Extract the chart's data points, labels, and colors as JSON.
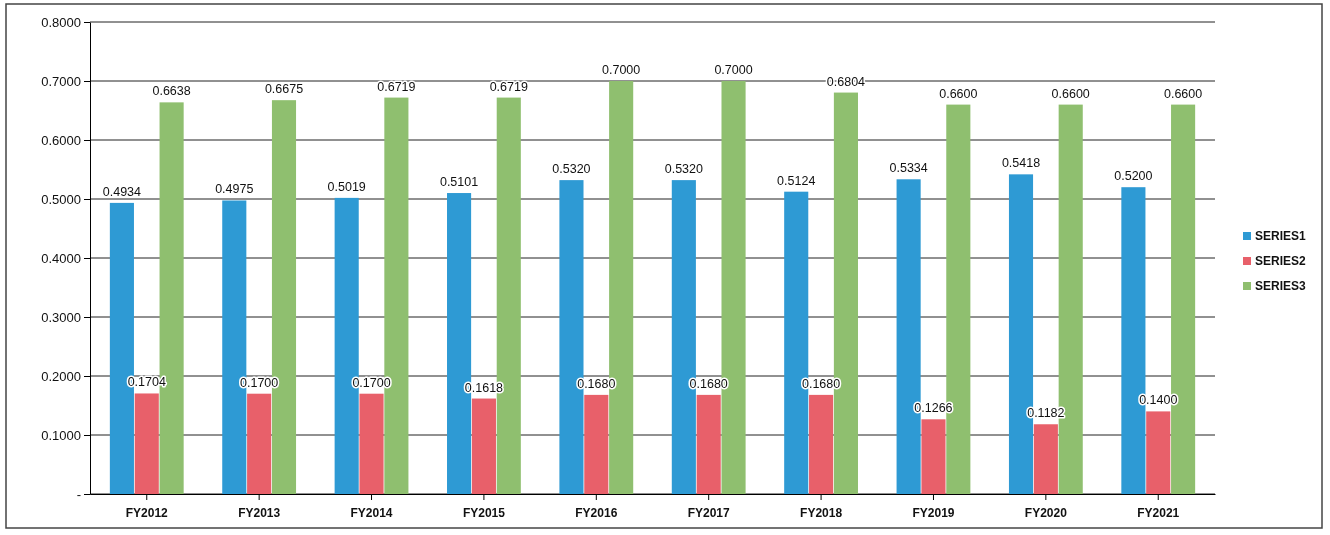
{
  "chart_data": {
    "type": "bar",
    "categories": [
      "FY2012",
      "FY2013",
      "FY2014",
      "FY2015",
      "FY2016",
      "FY2017",
      "FY2018",
      "FY2019",
      "FY2020",
      "FY2021"
    ],
    "series": [
      {
        "name": "SERIES1",
        "color": "#2e9ad4",
        "values": [
          0.4934,
          0.4975,
          0.5019,
          0.5101,
          0.532,
          0.532,
          0.5124,
          0.5334,
          0.5418,
          0.52
        ],
        "value_labels": [
          "0.4934",
          "0.4975",
          "0.5019",
          "0.5101",
          "0.5320",
          "0.5320",
          "0.5124",
          "0.5334",
          "0.5418",
          "0.5200"
        ]
      },
      {
        "name": "SERIES2",
        "color": "#e8606a",
        "values": [
          0.1704,
          0.17,
          0.17,
          0.1618,
          0.168,
          0.168,
          0.168,
          0.1266,
          0.1182,
          0.14
        ],
        "value_labels": [
          "0.1704",
          "0.1700",
          "0.1700",
          "0.1618",
          "0.1680",
          "0.1680",
          "0.1680",
          "0.1266",
          "0.1182",
          "0.1400"
        ]
      },
      {
        "name": "SERIES3",
        "color": "#8fbf6f",
        "values": [
          0.6638,
          0.6675,
          0.6719,
          0.6719,
          0.7,
          0.7,
          0.6804,
          0.66,
          0.66,
          0.66
        ],
        "value_labels": [
          "0.6638",
          "0.6675",
          "0.6719",
          "0.6719",
          "0.7000",
          "0.7000",
          "0.6804",
          "0.6600",
          "0.6600",
          "0.6600"
        ]
      }
    ],
    "ylim": [
      0,
      0.8
    ],
    "yticks": [
      {
        "value": 0,
        "label": "-"
      },
      {
        "value": 0.1,
        "label": "0.1000"
      },
      {
        "value": 0.2,
        "label": "0.2000"
      },
      {
        "value": 0.3,
        "label": "0.3000"
      },
      {
        "value": 0.4,
        "label": "0.4000"
      },
      {
        "value": 0.5,
        "label": "0.5000"
      },
      {
        "value": 0.6,
        "label": "0.6000"
      },
      {
        "value": 0.7,
        "label": "0.7000"
      },
      {
        "value": 0.8,
        "label": "0.8000"
      }
    ],
    "grid": "y",
    "legend": "right"
  }
}
